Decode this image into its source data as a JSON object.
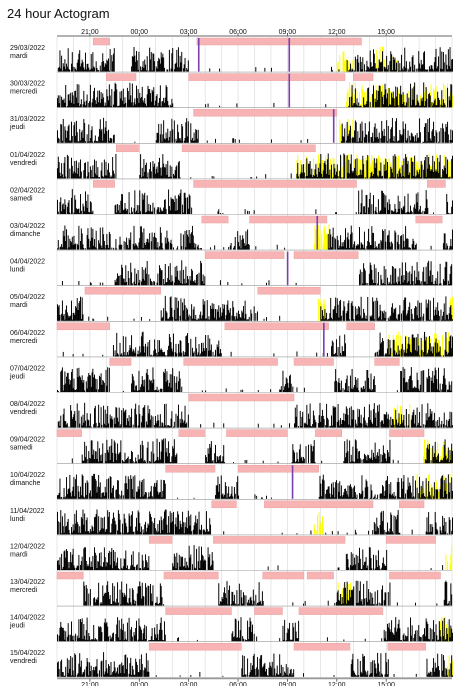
{
  "title": "24 hour Actogram",
  "chart_data": {
    "type": "actogram",
    "title": "24 hour Actogram",
    "x_axis": {
      "start_hour": 19,
      "span_hours": 24,
      "tick_labels": [
        "21:00",
        "00:00",
        "03:00",
        "06:00",
        "09:00",
        "12:00",
        "15:00"
      ],
      "tick_hours": [
        21,
        24,
        27,
        30,
        33,
        36,
        39
      ],
      "positions": [
        "top",
        "bottom"
      ]
    },
    "grid": true,
    "colors": {
      "activity": "#000000",
      "light": "#ffff00",
      "sleep_bar": "#f8b4b4",
      "event_marker": "#7b3fb0",
      "grid": "#cfcfcf",
      "baseline": "#999999"
    },
    "days": [
      {
        "date": "29/03/2022",
        "weekday": "mardi",
        "sleep": [
          [
            21.2,
            22.2
          ],
          [
            27.5,
            37.5
          ]
        ],
        "markers": [
          27.6,
          33.1
        ],
        "light": [
          [
            35.9,
            37.0
          ],
          [
            38.3,
            39.7
          ]
        ],
        "active": [
          [
            19.0,
            22.5
          ],
          [
            23.5,
            27.0
          ],
          [
            36.5,
            43.0
          ]
        ]
      },
      {
        "date": "30/03/2022",
        "weekday": "mercredi",
        "sleep": [
          [
            22.0,
            23.8
          ],
          [
            27.0,
            36.5
          ],
          [
            37.0,
            38.2
          ]
        ],
        "markers": [
          33.1
        ],
        "light": [
          [
            36.5,
            43.0
          ]
        ],
        "active": [
          [
            19.0,
            26.0
          ],
          [
            36.6,
            43.0
          ]
        ]
      },
      {
        "date": "31/03/2022",
        "weekday": "jeudi",
        "sleep": [
          [
            27.3,
            36.0
          ]
        ],
        "markers": [
          35.8
        ],
        "light": [
          [
            36.1,
            37.0
          ]
        ],
        "active": [
          [
            19.0,
            22.5
          ],
          [
            25.0,
            27.6
          ],
          [
            36.2,
            43.0
          ]
        ]
      },
      {
        "date": "01/04/2022",
        "weekday": "vendredi",
        "sleep": [
          [
            22.6,
            24.0
          ],
          [
            26.6,
            34.7
          ]
        ],
        "markers": [],
        "light": [
          [
            33.5,
            43.0
          ]
        ],
        "active": [
          [
            19.0,
            22.6
          ],
          [
            24.0,
            26.5
          ],
          [
            33.6,
            43.0
          ]
        ]
      },
      {
        "date": "02/04/2022",
        "weekday": "samedi",
        "sleep": [
          [
            21.2,
            22.5
          ],
          [
            27.3,
            37.2
          ],
          [
            41.5,
            42.6
          ]
        ],
        "markers": [],
        "light": [],
        "active": [
          [
            19.0,
            21.2
          ],
          [
            22.5,
            27.2
          ],
          [
            37.2,
            41.5
          ],
          [
            42.6,
            43.0
          ]
        ]
      },
      {
        "date": "03/04/2022",
        "weekday": "dimanche",
        "sleep": [
          [
            27.8,
            29.4
          ],
          [
            30.7,
            35.4
          ],
          [
            40.8,
            42.4
          ]
        ],
        "markers": [
          34.8
        ],
        "light": [
          [
            34.6,
            35.5
          ]
        ],
        "active": [
          [
            19.0,
            27.8
          ],
          [
            29.4,
            30.7
          ],
          [
            35.4,
            40.8
          ],
          [
            42.4,
            43.0
          ]
        ]
      },
      {
        "date": "04/04/2022",
        "weekday": "lundi",
        "sleep": [
          [
            28.0,
            32.8
          ],
          [
            33.4,
            37.3
          ]
        ],
        "markers": [
          33.0
        ],
        "light": [],
        "active": [
          [
            22.5,
            28.0
          ],
          [
            37.3,
            43.0
          ]
        ]
      },
      {
        "date": "05/04/2022",
        "weekday": "mardi",
        "sleep": [
          [
            20.7,
            25.3
          ],
          [
            31.2,
            35.0
          ]
        ],
        "markers": [],
        "light": [
          [
            34.8,
            35.3
          ],
          [
            42.8,
            43.0
          ]
        ],
        "active": [
          [
            19.0,
            20.6
          ],
          [
            25.3,
            31.2
          ],
          [
            35.0,
            43.0
          ]
        ]
      },
      {
        "date": "06/04/2022",
        "weekday": "mercredi",
        "sleep": [
          [
            19.0,
            22.2
          ],
          [
            29.2,
            35.5
          ],
          [
            36.6,
            38.3
          ]
        ],
        "markers": [
          35.2
        ],
        "light": [
          [
            39.0,
            43.0
          ]
        ],
        "active": [
          [
            22.3,
            29.0
          ],
          [
            35.6,
            36.5
          ],
          [
            38.3,
            43.0
          ]
        ]
      },
      {
        "date": "07/04/2022",
        "weekday": "jeudi",
        "sleep": [
          [
            22.2,
            23.5
          ],
          [
            26.7,
            32.4
          ],
          [
            33.4,
            35.8
          ],
          [
            38.3,
            39.8
          ]
        ],
        "markers": [],
        "light": [],
        "active": [
          [
            19.0,
            22.2
          ],
          [
            23.5,
            26.6
          ],
          [
            32.5,
            33.4
          ],
          [
            35.8,
            38.3
          ],
          [
            39.8,
            43.0
          ]
        ]
      },
      {
        "date": "08/04/2022",
        "weekday": "vendredi",
        "sleep": [
          [
            27.0,
            33.4
          ]
        ],
        "markers": [],
        "light": [
          [
            39.4,
            40.4
          ]
        ],
        "active": [
          [
            19.0,
            27.0
          ],
          [
            33.4,
            43.0
          ]
        ]
      },
      {
        "date": "09/04/2022",
        "weekday": "samedi",
        "sleep": [
          [
            19.0,
            20.5
          ],
          [
            26.4,
            28.0
          ],
          [
            29.3,
            33.0
          ],
          [
            34.7,
            36.3
          ],
          [
            39.2,
            41.3
          ]
        ],
        "markers": [],
        "light": [
          [
            41.2,
            43.0
          ]
        ],
        "active": [
          [
            20.5,
            26.3
          ],
          [
            28.0,
            29.3
          ],
          [
            33.0,
            34.7
          ],
          [
            36.3,
            39.2
          ],
          [
            41.3,
            43.0
          ]
        ]
      },
      {
        "date": "10/04/2022",
        "weekday": "dimanche",
        "sleep": [
          [
            25.6,
            28.6
          ],
          [
            30.0,
            34.9
          ]
        ],
        "markers": [
          33.3
        ],
        "light": [
          [
            40.8,
            43.0
          ]
        ],
        "active": [
          [
            19.0,
            25.6
          ],
          [
            28.6,
            30.0
          ],
          [
            34.9,
            43.0
          ]
        ]
      },
      {
        "date": "11/04/2022",
        "weekday": "lundi",
        "sleep": [
          [
            28.4,
            29.9
          ],
          [
            31.6,
            38.2
          ],
          [
            39.8,
            41.3
          ]
        ],
        "markers": [],
        "light": [
          [
            34.6,
            35.2
          ]
        ],
        "active": [
          [
            19.0,
            28.4
          ],
          [
            38.2,
            39.8
          ],
          [
            41.3,
            43.0
          ]
        ]
      },
      {
        "date": "12/04/2022",
        "weekday": "mardi",
        "sleep": [
          [
            24.6,
            26.0
          ],
          [
            28.5,
            36.5
          ],
          [
            39.0,
            42.0
          ]
        ],
        "markers": [],
        "light": [
          [
            42.5,
            43.0
          ]
        ],
        "active": [
          [
            19.0,
            24.6
          ],
          [
            26.0,
            28.5
          ],
          [
            36.5,
            39.0
          ]
        ]
      },
      {
        "date": "13/04/2022",
        "weekday": "mercredi",
        "sleep": [
          [
            19.0,
            20.6
          ],
          [
            25.5,
            28.8
          ],
          [
            31.5,
            34.0
          ],
          [
            34.2,
            35.8
          ],
          [
            39.2,
            42.3
          ]
        ],
        "markers": [],
        "light": [
          [
            36.0,
            36.8
          ]
        ],
        "active": [
          [
            20.6,
            25.5
          ],
          [
            28.8,
            31.5
          ],
          [
            35.9,
            39.2
          ],
          [
            42.4,
            43.0
          ]
        ]
      },
      {
        "date": "14/04/2022",
        "weekday": "jeudi",
        "sleep": [
          [
            25.6,
            29.6
          ],
          [
            31.0,
            32.7
          ],
          [
            33.7,
            38.8
          ]
        ],
        "markers": [],
        "light": [
          [
            42.2,
            43.0
          ]
        ],
        "active": [
          [
            19.0,
            25.6
          ],
          [
            29.6,
            31.0
          ],
          [
            32.7,
            33.7
          ],
          [
            38.8,
            43.0
          ]
        ]
      },
      {
        "date": "15/04/2022",
        "weekday": "vendredi",
        "sleep": [
          [
            24.6,
            30.2
          ],
          [
            33.4,
            36.8
          ],
          [
            39.1,
            41.4
          ]
        ],
        "markers": [],
        "light": [
          [
            42.6,
            43.0
          ]
        ],
        "active": [
          [
            19.0,
            24.6
          ],
          [
            30.2,
            33.4
          ],
          [
            36.8,
            39.1
          ],
          [
            41.4,
            43.0
          ]
        ]
      }
    ]
  }
}
